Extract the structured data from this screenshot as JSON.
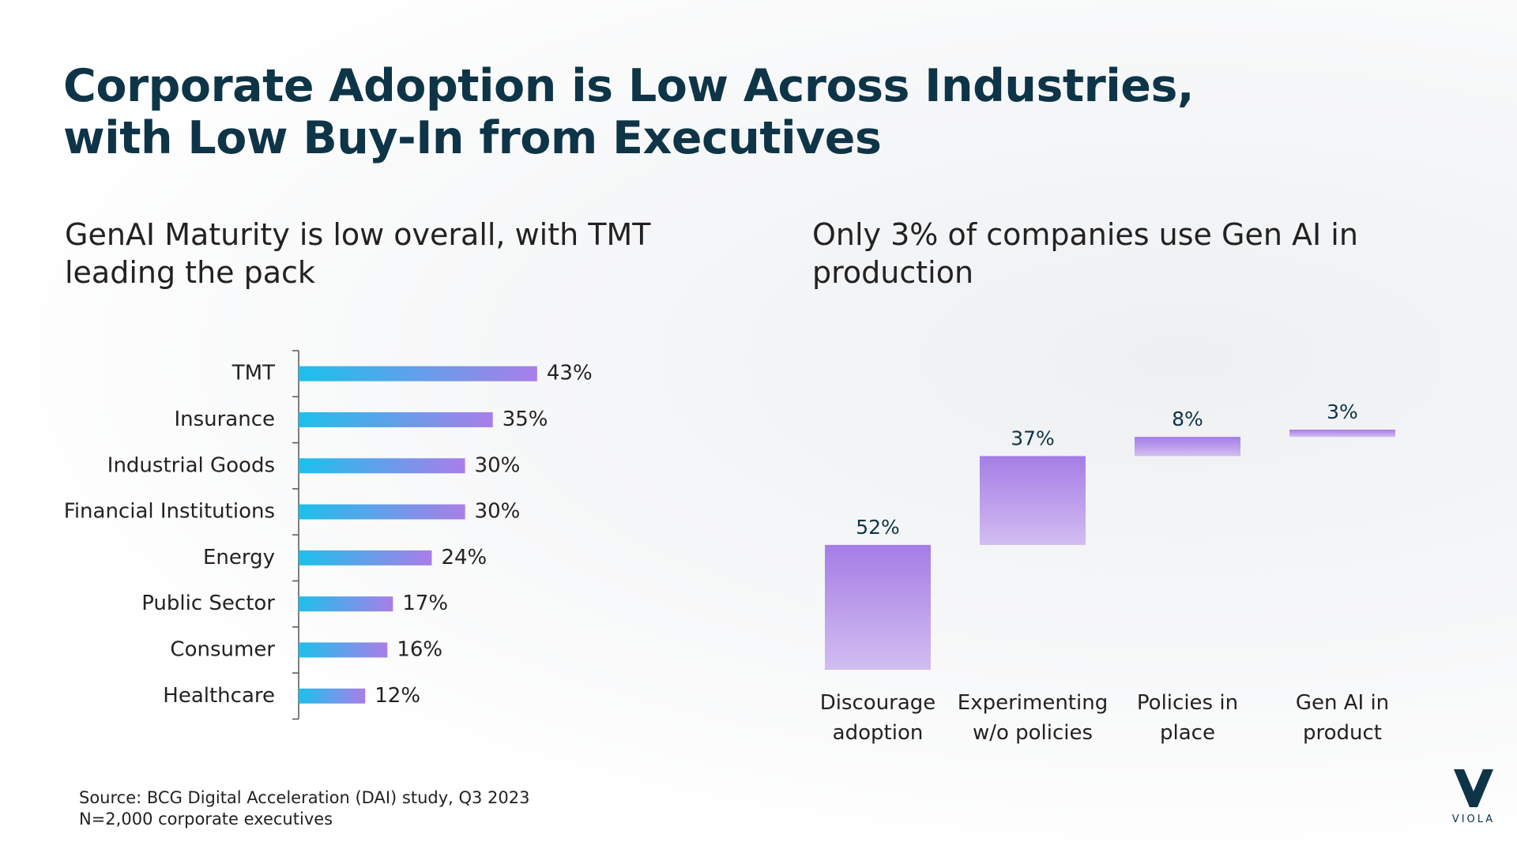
{
  "slide": {
    "title_line1": "Corporate Adoption is Low Across Industries,",
    "title_line2": "with Low Buy-In from Executives",
    "left_subtitle": "GenAI Maturity is low overall, with TMT leading the pack",
    "right_subtitle": "Only 3% of companies use Gen AI in production",
    "source_line1": "Source: BCG Digital Acceleration (DAI) study, Q3 2023",
    "source_line2": "N=2,000 corporate executives",
    "logo_text": "VIOLA"
  },
  "colors": {
    "title": "#0e3447",
    "bar_gradient_start": "#1cc0eb",
    "bar_gradient_end": "#a97ee8",
    "column_top": "#a57de6",
    "column_bottom": "#d2bdf2",
    "axis": "#555555"
  },
  "chart_data": [
    {
      "type": "bar",
      "orientation": "horizontal",
      "title": "GenAI Maturity is low overall, with TMT leading the pack",
      "categories": [
        "TMT",
        "Insurance",
        "Industrial Goods",
        "Financial Institutions",
        "Energy",
        "Public Sector",
        "Consumer",
        "Healthcare"
      ],
      "values": [
        43,
        35,
        30,
        30,
        24,
        17,
        16,
        12
      ],
      "labels": [
        "43%",
        "35%",
        "30%",
        "30%",
        "24%",
        "17%",
        "16%",
        "12%"
      ],
      "unit": "%",
      "xlim": [
        0,
        100
      ],
      "grid": false
    },
    {
      "type": "bar",
      "subtype": "waterfall",
      "title": "Only 3% of companies use Gen AI in production",
      "categories": [
        "Discourage adoption",
        "Experimenting w/o policies",
        "Policies in place",
        "Gen AI in product"
      ],
      "category_lines": [
        [
          "Discourage",
          "adoption"
        ],
        [
          "Experimenting",
          "w/o policies"
        ],
        [
          "Policies in",
          "place"
        ],
        [
          "Gen AI in",
          "product"
        ]
      ],
      "values": [
        52,
        37,
        8,
        3
      ],
      "labels": [
        "52%",
        "37%",
        "8%",
        "3%"
      ],
      "unit": "%",
      "ylim": [
        0,
        100
      ],
      "grid": false
    }
  ]
}
